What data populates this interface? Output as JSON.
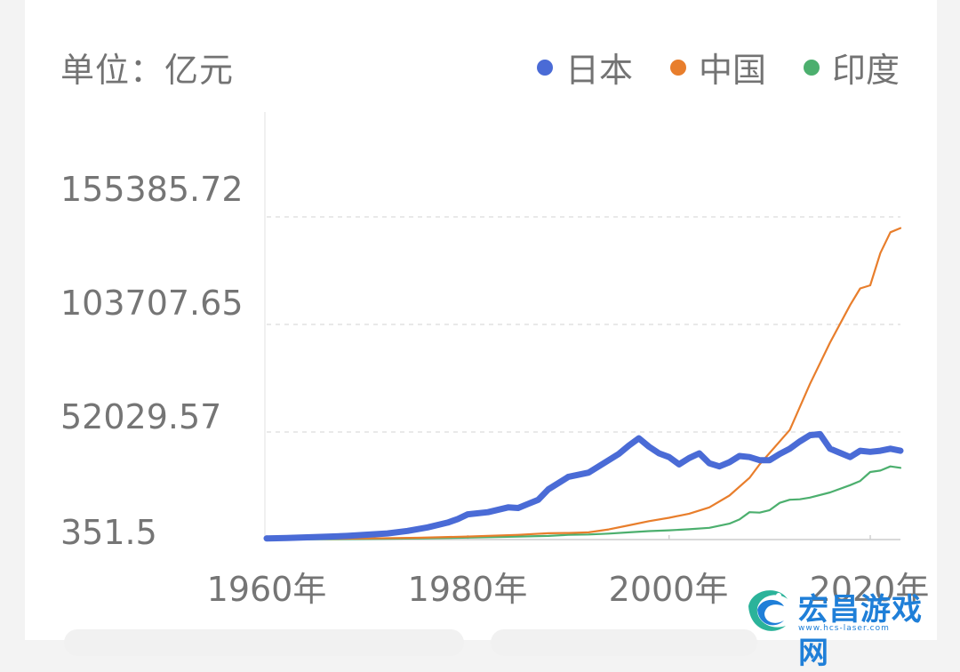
{
  "unit_label": "单位：亿元",
  "watermark": {
    "text": "宏昌游戏网",
    "url": "www.hcs-laser.com"
  },
  "chart_data": {
    "type": "line",
    "title": "",
    "ylabel": "单位：亿元",
    "xlabel": "",
    "x_ticks": [
      "1960年",
      "1980年",
      "2000年",
      "2020年"
    ],
    "x_tick_values": [
      1960,
      1980,
      2000,
      2020
    ],
    "y_ticks": [
      "155385.72",
      "103707.65",
      "52029.57",
      "351.5"
    ],
    "y_tick_values": [
      155385.72,
      103707.65,
      52029.57,
      351.5
    ],
    "ylim": [
      351.5,
      155385.72
    ],
    "xlim": [
      1960,
      2023
    ],
    "grid": "horizontal dashed",
    "legend_position": "top-right",
    "series": [
      {
        "name": "日本",
        "color": "#4a6bd6",
        "x": [
          1960,
          1962,
          1964,
          1966,
          1968,
          1970,
          1972,
          1974,
          1976,
          1978,
          1979,
          1980,
          1982,
          1984,
          1985,
          1986,
          1987,
          1988,
          1990,
          1992,
          1994,
          1995,
          1996,
          1997,
          1998,
          1999,
          2000,
          2001,
          2002,
          2003,
          2004,
          2005,
          2006,
          2007,
          2008,
          2009,
          2010,
          2011,
          2012,
          2013,
          2014,
          2015,
          2016,
          2017,
          2018,
          2019,
          2020,
          2021,
          2022,
          2023
        ],
        "y": [
          900,
          1100,
          1400,
          1700,
          2100,
          2700,
          3300,
          4500,
          6200,
          8500,
          10200,
          12500,
          13500,
          15800,
          15500,
          17500,
          19500,
          24500,
          30500,
          32500,
          38500,
          41500,
          45500,
          49000,
          45000,
          41800,
          40000,
          36500,
          39500,
          41800,
          37000,
          35500,
          37500,
          40500,
          40000,
          38500,
          38500,
          41500,
          44000,
          47500,
          50500,
          51000,
          44000,
          42000,
          40000,
          43000,
          42500,
          43000,
          44000,
          43000
        ]
      },
      {
        "name": "中国",
        "color": "#e87e2c",
        "x": [
          1960,
          1965,
          1970,
          1975,
          1980,
          1985,
          1988,
          1990,
          1992,
          1994,
          1996,
          1998,
          2000,
          2002,
          2004,
          2006,
          2008,
          2009,
          2010,
          2012,
          2014,
          2016,
          2018,
          2019,
          2020,
          2021,
          2022,
          2023
        ],
        "y": [
          500,
          700,
          900,
          1200,
          1800,
          2600,
          3400,
          3500,
          3800,
          5200,
          7200,
          9200,
          10800,
          12800,
          15800,
          21500,
          30000,
          36500,
          42000,
          53000,
          75000,
          95000,
          113000,
          121000,
          122500,
          138000,
          148000,
          150000
        ]
      },
      {
        "name": "印度",
        "color": "#4caf6e",
        "x": [
          1960,
          1965,
          1970,
          1975,
          1980,
          1985,
          1988,
          1990,
          1992,
          1994,
          1996,
          1998,
          2000,
          2002,
          2004,
          2006,
          2007,
          2008,
          2009,
          2010,
          2011,
          2012,
          2013,
          2014,
          2016,
          2018,
          2019,
          2020,
          2021,
          2022,
          2023
        ],
        "y": [
          350,
          500,
          650,
          850,
          1300,
          1800,
          2100,
          2600,
          2800,
          3200,
          3800,
          4400,
          4800,
          5300,
          6000,
          8000,
          10000,
          13500,
          13300,
          14500,
          18000,
          19500,
          19700,
          20500,
          23000,
          26500,
          28500,
          32800,
          33500,
          35500,
          34800
        ]
      }
    ]
  }
}
